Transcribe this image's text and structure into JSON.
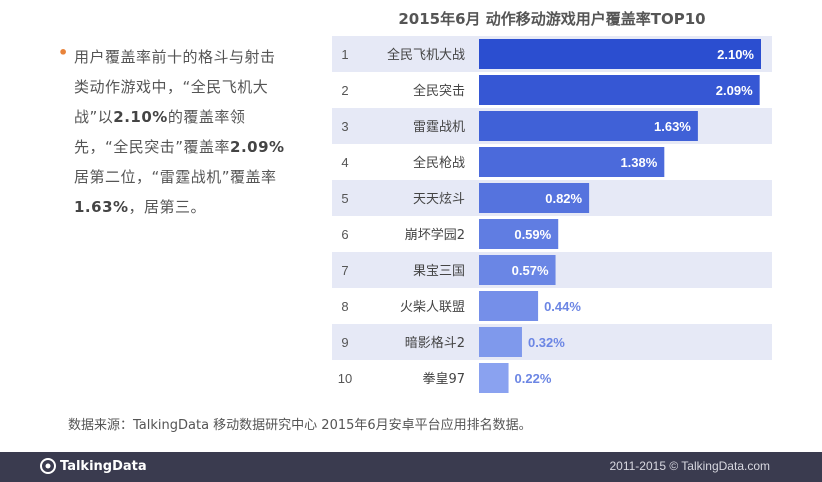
{
  "bullet": {
    "parts": [
      {
        "text": "用户覆盖率前十的格斗与射击类动作游戏中，“全民飞机大战”以",
        "bold": false
      },
      {
        "text": "2.10%",
        "bold": true
      },
      {
        "text": "的覆盖率领先，“全民突击”覆盖率",
        "bold": false
      },
      {
        "text": "2.09%",
        "bold": true
      },
      {
        "text": "居第二位，“雷霆战机”覆盖率",
        "bold": false
      },
      {
        "text": "1.63%",
        "bold": true
      },
      {
        "text": "，居第三。",
        "bold": false
      }
    ]
  },
  "source_note": "数据来源：TalkingData 移动数据研究中心 2015年6月安卓平台应用排名数据。",
  "footer": {
    "logo_text": "TalkingData",
    "copyright": "2011-2015 © TalkingData.com"
  },
  "colors": {
    "bar_dark": "#2b4ed0",
    "bar_light": "#8aa2f0",
    "row_band": "#e6e9f6",
    "footer_bg": "#3a3b4f",
    "bullet": "#e8833a"
  },
  "chart_data": {
    "type": "bar",
    "orientation": "horizontal",
    "title": "2015年6月 动作移动游戏用户覆盖率TOP10",
    "ranks": [
      "1",
      "2",
      "3",
      "4",
      "5",
      "6",
      "7",
      "8",
      "9",
      "10"
    ],
    "categories": [
      "全民飞机大战",
      "全民突击",
      "雷霆战机",
      "全民枪战",
      "天天炫斗",
      "崩坏学园2",
      "果宝三国",
      "火柴人联盟",
      "暗影格斗2",
      "拳皇97"
    ],
    "values": [
      2.1,
      2.09,
      1.63,
      1.38,
      0.82,
      0.59,
      0.57,
      0.44,
      0.32,
      0.22
    ],
    "value_labels": [
      "2.10%",
      "2.09%",
      "1.63%",
      "1.38%",
      "0.82%",
      "0.59%",
      "0.57%",
      "0.44%",
      "0.32%",
      "0.22%"
    ],
    "unit": "%",
    "xlim": [
      0,
      2.2
    ],
    "grid": false,
    "legend": "none"
  }
}
